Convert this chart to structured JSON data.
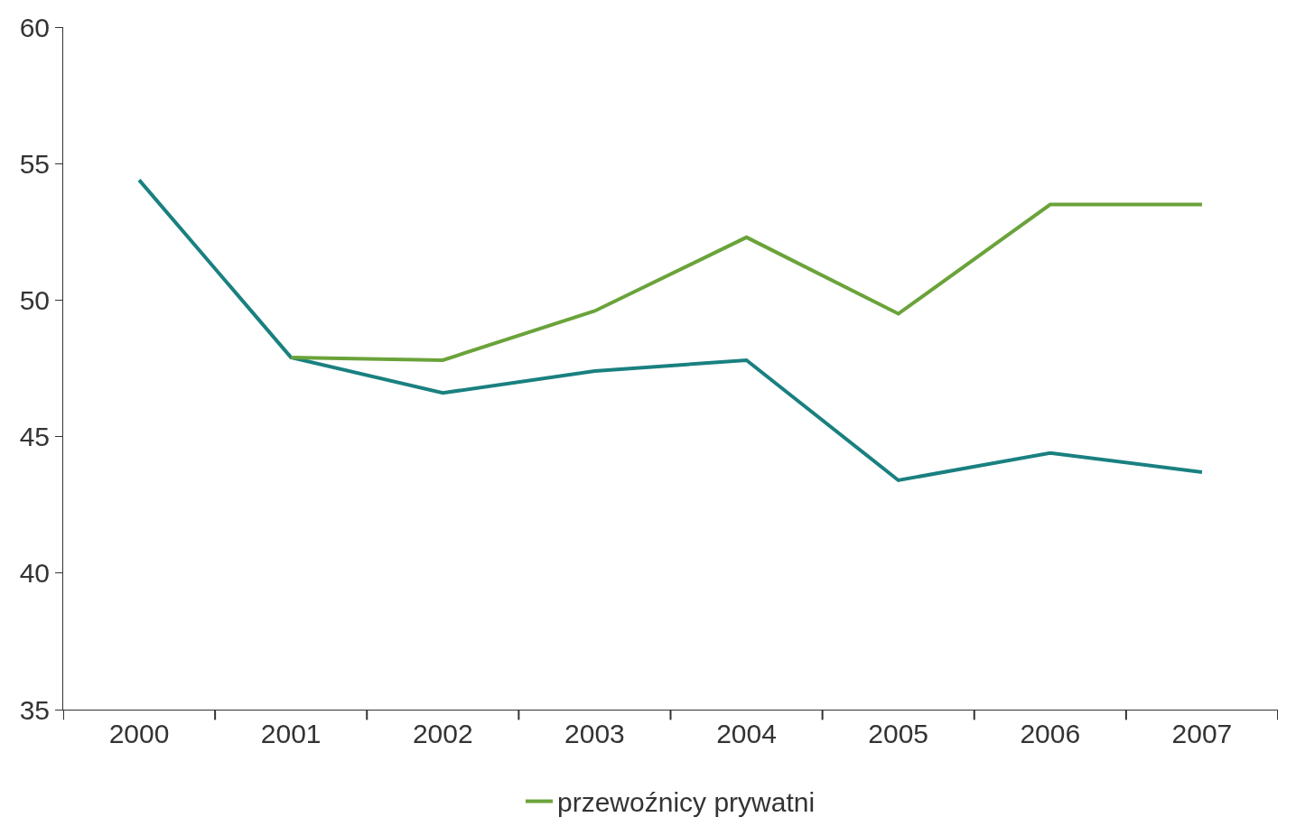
{
  "chart_data": {
    "type": "line",
    "categories": [
      "2000",
      "2001",
      "2002",
      "2003",
      "2004",
      "2005",
      "2006",
      "2007"
    ],
    "series": [
      {
        "color": "#1a8080",
        "values": [
          54.4,
          47.9,
          46.6,
          47.4,
          47.8,
          43.4,
          44.4,
          43.7
        ]
      },
      {
        "name": "przewoźnicy prywatni",
        "color": "#6aa33a",
        "values": [
          null,
          47.9,
          47.8,
          49.6,
          52.3,
          49.5,
          53.5,
          53.5
        ]
      }
    ],
    "ylim": [
      35,
      60
    ],
    "yticks": [
      35,
      40,
      45,
      50,
      55,
      60
    ],
    "legend": "bottom",
    "marker": "none",
    "line_style": "solid"
  }
}
